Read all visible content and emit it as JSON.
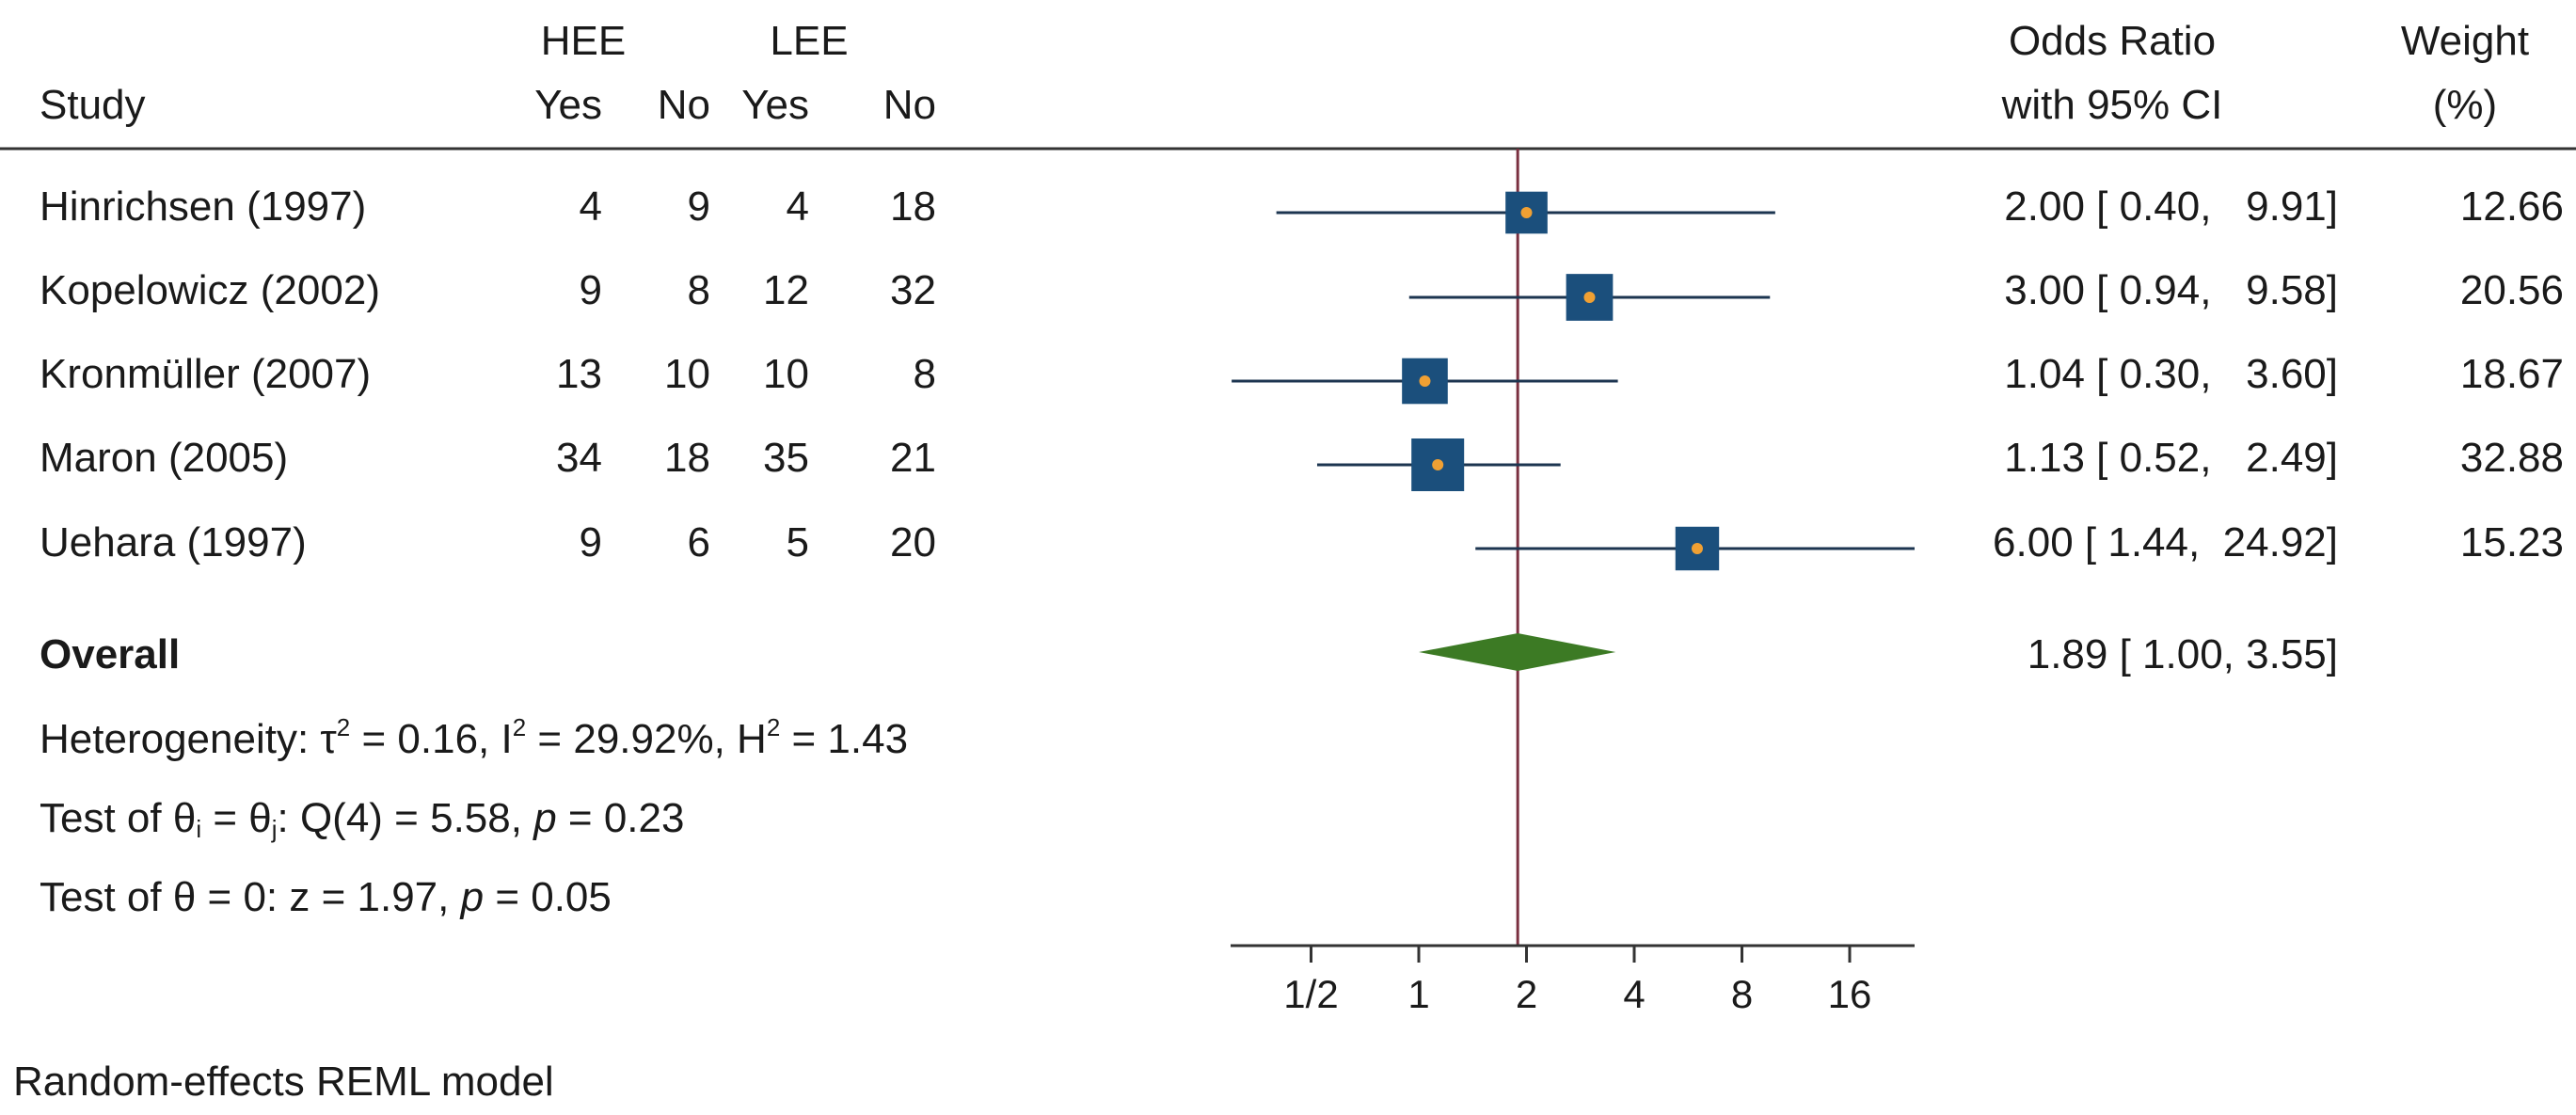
{
  "chart_data": {
    "type": "forest",
    "scale": "log2",
    "headers": {
      "study": "Study",
      "group1": "HEE",
      "group2": "LEE",
      "yes": "Yes",
      "no": "No",
      "or_line1": "Odds Ratio",
      "or_line2": "with 95% CI",
      "weight_line1": "Weight",
      "weight_line2": "(%)"
    },
    "studies": [
      {
        "name": "Hinrichsen (1997)",
        "hee_yes": "4",
        "hee_no": "9",
        "lee_yes": "4",
        "lee_no": "18",
        "or": 2.0,
        "lo": 0.4,
        "hi": 9.91,
        "or_text": "2.00 [ 0.40,   9.91]",
        "weight": 12.66,
        "weight_text": "12.66"
      },
      {
        "name": "Kopelowicz (2002)",
        "hee_yes": "9",
        "hee_no": "8",
        "lee_yes": "12",
        "lee_no": "32",
        "or": 3.0,
        "lo": 0.94,
        "hi": 9.58,
        "or_text": "3.00 [ 0.94,   9.58]",
        "weight": 20.56,
        "weight_text": "20.56"
      },
      {
        "name": "Kronmüller (2007)",
        "hee_yes": "13",
        "hee_no": "10",
        "lee_yes": "10",
        "lee_no": "8",
        "or": 1.04,
        "lo": 0.3,
        "hi": 3.6,
        "or_text": "1.04 [ 0.30,   3.60]",
        "weight": 18.67,
        "weight_text": "18.67"
      },
      {
        "name": "Maron (2005)",
        "hee_yes": "34",
        "hee_no": "18",
        "lee_yes": "35",
        "lee_no": "21",
        "or": 1.13,
        "lo": 0.52,
        "hi": 2.49,
        "or_text": "1.13 [ 0.52,   2.49]",
        "weight": 32.88,
        "weight_text": "32.88"
      },
      {
        "name": "Uehara (1997)",
        "hee_yes": "9",
        "hee_no": "6",
        "lee_yes": "5",
        "lee_no": "20",
        "or": 6.0,
        "lo": 1.44,
        "hi": 24.92,
        "or_text": "6.00 [ 1.44,  24.92]",
        "weight": 15.23,
        "weight_text": "15.23"
      }
    ],
    "overall": {
      "label": "Overall",
      "or": 1.89,
      "lo": 1.0,
      "hi": 3.55,
      "or_text": "1.89 [ 1.00,   3.55]"
    },
    "heterogeneity": {
      "prefix": "Heterogeneity: ",
      "tau_symbol": "τ",
      "tau_sup": "2",
      "tau_val": " = 0.16, ",
      "i_symbol": "I",
      "i_sup": "2",
      "i_val": " = 29.92%, ",
      "h_symbol": "H",
      "h_sup": "2",
      "h_val": " = 1.43"
    },
    "test_theta_ij": {
      "a": "Test of θ",
      "sub_i": "i",
      "b": " = θ",
      "sub_j": "j",
      "c": ": Q(4) = 5.58, ",
      "p": "p",
      "d": " = 0.23"
    },
    "test_theta_zero": {
      "a": "Test of θ = 0: z = 1.97, ",
      "p": "p",
      "d": " = 0.05"
    },
    "x_axis": {
      "ticks": [
        0.5,
        1,
        2,
        4,
        8,
        16
      ],
      "tick_labels": [
        "1/2",
        "1",
        "2",
        "4",
        "8",
        "16"
      ],
      "range": [
        0.3,
        25
      ],
      "reference_line": 1.89
    },
    "model_note": "Random-effects REML model",
    "colors": {
      "square": "#1b4f7c",
      "dot": "#f0a033",
      "ci_line": "#1c3550",
      "diamond": "#3c7a24",
      "ref_line": "#7a3040",
      "axis": "#333333",
      "separator": "#333333"
    }
  }
}
